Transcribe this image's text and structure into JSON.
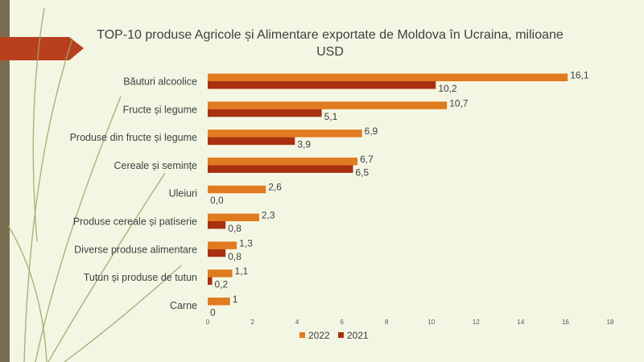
{
  "colors": {
    "background": "#f4f6e4",
    "sidebar": "#7a6c50",
    "ribbon": "#b8401e",
    "curves": "#9aa868",
    "series_2022": "#e07b1f",
    "series_2021": "#a8300f"
  },
  "chart_data": {
    "type": "bar",
    "orientation": "horizontal",
    "title": "TOP-10 produse Agricole și Alimentare exportate de Moldova în Ucraina, milioane USD",
    "categories": [
      "Băuturi alcoolice",
      "Fructe și legume",
      "Produse din fructe și legume",
      "Cereale și semințe",
      "Uleiuri",
      "Produse cereale și patiserie",
      "Diverse produse alimentare",
      "Tutun și produse de tutun",
      "Carne"
    ],
    "series": [
      {
        "name": "2022",
        "values": [
          16.1,
          10.7,
          6.9,
          6.7,
          2.6,
          2.3,
          1.3,
          1.1,
          1
        ],
        "labels": [
          "16,1",
          "10,7",
          "6,9",
          "6,7",
          "2,6",
          "2,3",
          "1,3",
          "1,1",
          "1"
        ]
      },
      {
        "name": "2021",
        "values": [
          10.2,
          5.1,
          3.9,
          6.5,
          0,
          0.8,
          0.8,
          0.2,
          0
        ],
        "labels": [
          "10,2",
          "5,1",
          "3,9",
          "6,5",
          "0,0",
          "0,8",
          "0,8",
          "0,2",
          "0"
        ]
      }
    ],
    "xticks": [
      0,
      2,
      4,
      6,
      8,
      10,
      12,
      14,
      16,
      18
    ],
    "xlim": [
      0,
      18
    ],
    "legend_position": "bottom",
    "grid": false
  }
}
